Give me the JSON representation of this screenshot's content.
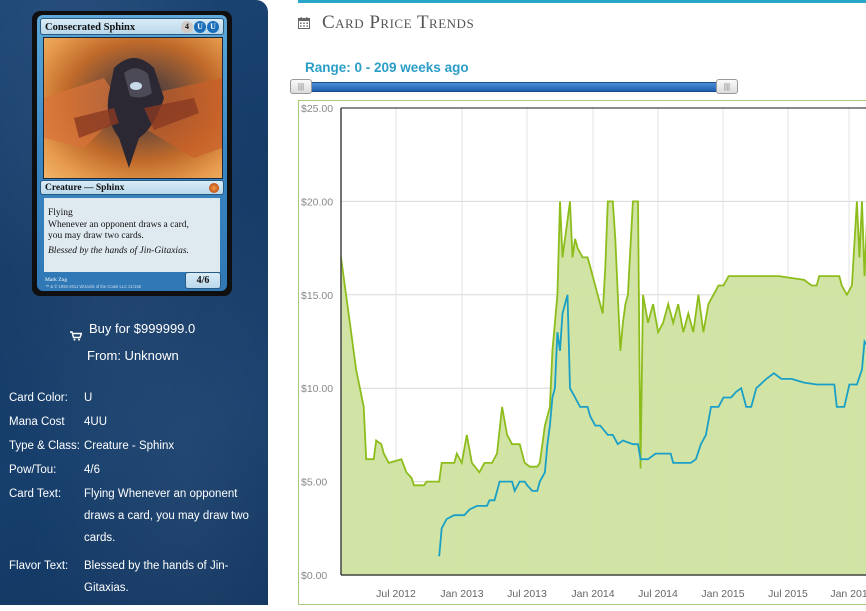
{
  "card": {
    "name": "Consecrated Sphinx",
    "mana_symbols": [
      "4",
      "U",
      "U"
    ],
    "type_line": "Creature — Sphinx",
    "rules_text": "Flying\nWhenever an opponent draws a card, you may draw two cards.",
    "rules_line1": "Flying",
    "rules_line2": "Whenever an opponent draws a card,",
    "rules_line3": "you may draw two cards.",
    "flavor": "Blessed by the hands of Jin-Gitaxias.",
    "power_toughness": "4/6",
    "artist": "Mark Zug",
    "copyright": "™ & © 1993-2011 Wizards of the Coast LLC 21/155"
  },
  "buy": {
    "label": "Buy for $999999.0",
    "from": "From: Unknown"
  },
  "details": [
    {
      "label": "Card Color:",
      "value": "U"
    },
    {
      "label": "Mana Cost",
      "value": "4UU"
    },
    {
      "label": "Type & Class:",
      "value": "Creature - Sphinx"
    },
    {
      "label": "Pow/Tou:",
      "value": "4/6"
    },
    {
      "label": "Card Text:",
      "value": "Flying Whenever an opponent draws a card, you may draw two cards."
    },
    {
      "label": "Flavor Text:",
      "value": "Blessed by the hands of Jin-Gitaxias."
    }
  ],
  "details_wrapped": {
    "card_text_lines": [
      "Flying Whenever an opponent",
      "draws a card, you may draw two",
      "cards."
    ],
    "flavor_lines": [
      "Blessed by the hands of Jin-",
      "Gitaxias."
    ]
  },
  "header": {
    "title": "Card Price Trends",
    "icon": "calendar-icon"
  },
  "range": {
    "label": "Range: 0 - 209 weeks ago",
    "min": 0,
    "max": 209
  },
  "colors": {
    "accent": "#29a6c7",
    "sidebar": "#143a66",
    "series_high": "#8dbd1c",
    "series_high_fill": "#cfe3a0",
    "series_low": "#1a9fc6"
  },
  "chart_data": {
    "type": "line",
    "ylim": [
      0,
      25
    ],
    "y_ticks": [
      "$0.00",
      "$5.00",
      "$10.00",
      "$15.00",
      "$20.00",
      "$25.00"
    ],
    "x_ticks": [
      "Jul 2012",
      "Jan 2013",
      "Jul 2013",
      "Jan 2014",
      "Jul 2014",
      "Jan 2015",
      "Jul 2015",
      "Jan 201"
    ],
    "x_range_weeks_ago": [
      209,
      0
    ],
    "series": [
      {
        "style": "area",
        "points": [
          [
            209,
            17.0
          ],
          [
            206,
            14.0
          ],
          [
            203,
            11.0
          ],
          [
            200,
            9.0
          ],
          [
            199,
            6.2
          ],
          [
            196,
            6.2
          ],
          [
            195,
            7.2
          ],
          [
            193,
            7.0
          ],
          [
            192,
            6.5
          ],
          [
            190,
            6.0
          ],
          [
            185,
            6.2
          ],
          [
            183,
            5.5
          ],
          [
            181,
            5.2
          ],
          [
            180,
            4.8
          ],
          [
            176,
            4.8
          ],
          [
            175,
            5.0
          ],
          [
            170,
            5.0
          ],
          [
            169,
            6.0
          ],
          [
            164,
            6.0
          ],
          [
            163,
            6.5
          ],
          [
            161,
            6.0
          ],
          [
            159,
            7.5
          ],
          [
            157,
            6.0
          ],
          [
            154,
            5.5
          ],
          [
            152,
            6.0
          ],
          [
            149,
            6.0
          ],
          [
            147,
            6.5
          ],
          [
            145,
            9.0
          ],
          [
            143,
            7.5
          ],
          [
            141,
            7.0
          ],
          [
            138,
            7.0
          ],
          [
            136,
            6.0
          ],
          [
            134,
            5.8
          ],
          [
            131,
            5.8
          ],
          [
            130,
            6.0
          ],
          [
            128,
            8.0
          ],
          [
            126,
            9.0
          ],
          [
            125,
            12.0
          ],
          [
            124,
            13.5
          ],
          [
            123,
            15.0
          ],
          [
            122,
            20.0
          ],
          [
            121,
            17.0
          ],
          [
            120,
            18.0
          ],
          [
            119,
            19.0
          ],
          [
            118,
            20.0
          ],
          [
            117,
            17.0
          ],
          [
            116,
            18.0
          ],
          [
            115,
            17.5
          ],
          [
            113,
            17.0
          ],
          [
            111,
            17.0
          ],
          [
            110,
            16.5
          ],
          [
            109,
            16.0
          ],
          [
            107,
            15.0
          ],
          [
            106,
            14.5
          ],
          [
            105,
            14.0
          ],
          [
            104,
            16.5
          ],
          [
            103,
            20.0
          ],
          [
            101,
            20.0
          ],
          [
            100,
            18.0
          ],
          [
            99,
            15.0
          ],
          [
            98,
            12.0
          ],
          [
            97,
            13.5
          ],
          [
            96,
            14.5
          ],
          [
            95,
            15.0
          ],
          [
            93,
            20.0
          ],
          [
            91,
            20.0
          ],
          [
            90,
            5.7
          ],
          [
            89,
            15.0
          ],
          [
            87,
            13.5
          ],
          [
            85,
            14.5
          ],
          [
            83,
            13.0
          ],
          [
            81,
            13.5
          ],
          [
            79,
            14.5
          ],
          [
            77,
            13.5
          ],
          [
            75,
            14.5
          ],
          [
            73,
            13.0
          ],
          [
            71,
            14.0
          ],
          [
            69,
            13.0
          ],
          [
            67,
            15.0
          ],
          [
            65,
            13.0
          ],
          [
            63,
            14.5
          ],
          [
            61,
            15.0
          ],
          [
            59,
            15.5
          ],
          [
            57,
            15.5
          ],
          [
            55,
            16.0
          ],
          [
            45,
            16.0
          ],
          [
            35,
            16.0
          ],
          [
            25,
            15.8
          ],
          [
            22,
            15.5
          ],
          [
            20,
            15.5
          ],
          [
            19,
            16.0
          ],
          [
            12,
            16.0
          ],
          [
            11,
            16.0
          ],
          [
            10,
            15.5
          ],
          [
            8,
            15.0
          ],
          [
            6,
            15.5
          ],
          [
            4,
            20.0
          ],
          [
            3,
            17.0
          ],
          [
            2,
            20.0
          ],
          [
            1,
            16.0
          ],
          [
            0,
            19.0
          ]
        ]
      },
      {
        "style": "line",
        "points": [
          [
            170,
            1.0
          ],
          [
            169,
            2.5
          ],
          [
            167,
            3.0
          ],
          [
            164,
            3.2
          ],
          [
            160,
            3.2
          ],
          [
            158,
            3.5
          ],
          [
            155,
            3.7
          ],
          [
            151,
            3.7
          ],
          [
            150,
            4.0
          ],
          [
            148,
            4.0
          ],
          [
            146,
            5.0
          ],
          [
            141,
            5.0
          ],
          [
            140,
            4.5
          ],
          [
            138,
            5.0
          ],
          [
            136,
            5.0
          ],
          [
            135,
            4.8
          ],
          [
            133,
            4.5
          ],
          [
            131,
            4.5
          ],
          [
            130,
            5.0
          ],
          [
            128,
            5.5
          ],
          [
            127,
            7.0
          ],
          [
            126,
            8.0
          ],
          [
            125,
            9.5
          ],
          [
            124,
            10.0
          ],
          [
            123,
            13.0
          ],
          [
            122,
            12.0
          ],
          [
            121,
            14.0
          ],
          [
            120,
            14.5
          ],
          [
            119,
            15.0
          ],
          [
            118,
            10.0
          ],
          [
            116,
            9.5
          ],
          [
            114,
            9.0
          ],
          [
            111,
            9.0
          ],
          [
            110,
            8.5
          ],
          [
            108,
            8.0
          ],
          [
            106,
            8.0
          ],
          [
            103,
            7.5
          ],
          [
            101,
            7.5
          ],
          [
            99,
            7.0
          ],
          [
            97,
            7.2
          ],
          [
            93,
            7.0
          ],
          [
            91,
            7.0
          ],
          [
            90,
            6.2
          ],
          [
            87,
            6.2
          ],
          [
            84,
            6.5
          ],
          [
            80,
            6.5
          ],
          [
            78,
            6.5
          ],
          [
            77,
            6.0
          ],
          [
            70,
            6.0
          ],
          [
            68,
            6.2
          ],
          [
            66,
            7.0
          ],
          [
            64,
            7.5
          ],
          [
            62,
            9.0
          ],
          [
            59,
            9.0
          ],
          [
            57,
            9.5
          ],
          [
            54,
            9.5
          ],
          [
            52,
            9.8
          ],
          [
            50,
            10.0
          ],
          [
            48,
            9.0
          ],
          [
            46,
            9.0
          ],
          [
            44,
            10.0
          ],
          [
            40,
            10.5
          ],
          [
            37,
            10.8
          ],
          [
            34,
            10.5
          ],
          [
            30,
            10.5
          ],
          [
            25,
            10.3
          ],
          [
            20,
            10.2
          ],
          [
            15,
            10.2
          ],
          [
            13,
            10.2
          ],
          [
            12,
            9.0
          ],
          [
            9,
            9.0
          ],
          [
            7,
            10.2
          ],
          [
            4,
            10.2
          ],
          [
            2,
            11.0
          ],
          [
            1,
            12.5
          ],
          [
            0,
            12.3
          ]
        ]
      }
    ]
  }
}
